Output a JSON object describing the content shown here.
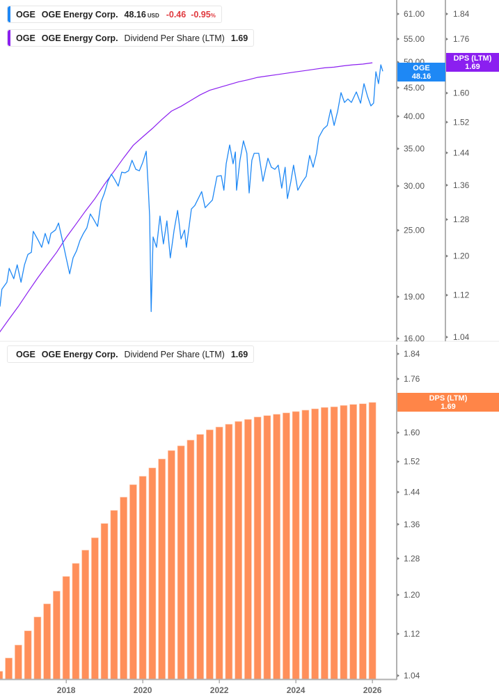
{
  "colors": {
    "price": "#1e88f5",
    "dps_line": "#8b1ff0",
    "dps_bar": "#ff8f5a",
    "negative": "#e0393e",
    "axis": "#b0b0b0",
    "tick_text": "#555555"
  },
  "legends": {
    "price": {
      "ticker": "OGE",
      "name": "OGE Energy Corp.",
      "value": "48.16",
      "currency": "USD",
      "change": "-0.46",
      "change_pct": "-0.95",
      "pct_sign": "%"
    },
    "dps_top": {
      "ticker": "OGE",
      "name": "OGE Energy Corp.",
      "metric": "Dividend Per Share (LTM)",
      "value": "1.69"
    },
    "dps_bottom": {
      "ticker": "OGE",
      "name": "OGE Energy Corp.",
      "metric": "Dividend Per Share (LTM)",
      "value": "1.69"
    }
  },
  "badges": {
    "price": {
      "label": "OGE",
      "value": "48.16"
    },
    "dps_top": {
      "label": "DPS (LTM)",
      "value": "1.69"
    },
    "dps_bottom": {
      "label": "DPS (LTM)",
      "value": "1.69"
    }
  },
  "chart_data": [
    {
      "type": "line",
      "panel": "top",
      "yscale": "log",
      "xlim": [
        2016.27,
        2026.58
      ],
      "price_axis": {
        "ylim": [
          16,
          61
        ],
        "ticks": [
          "61.00",
          "55.00",
          "50.00",
          "45.00",
          "40.00",
          "35.00",
          "30.00",
          "25.00",
          "19.00",
          "16.00"
        ]
      },
      "dps_axis": {
        "ylim": [
          1.04,
          1.84
        ],
        "ticks": [
          "1.84",
          "1.76",
          "1.68",
          "1.60",
          "1.52",
          "1.44",
          "1.36",
          "1.28",
          "1.20",
          "1.12",
          "1.04"
        ]
      },
      "series": [
        {
          "name": "OGE",
          "axis": "price",
          "points": [
            [
              2016.27,
              18.25
            ],
            [
              2016.32,
              19.61
            ],
            [
              2016.45,
              20.18
            ],
            [
              2016.51,
              21.37
            ],
            [
              2016.63,
              20.47
            ],
            [
              2016.72,
              21.68
            ],
            [
              2016.82,
              20.18
            ],
            [
              2016.91,
              21.68
            ],
            [
              2017.0,
              22.63
            ],
            [
              2017.09,
              22.83
            ],
            [
              2017.14,
              24.89
            ],
            [
              2017.27,
              23.97
            ],
            [
              2017.36,
              23.3
            ],
            [
              2017.45,
              24.68
            ],
            [
              2017.54,
              23.63
            ],
            [
              2017.6,
              24.68
            ],
            [
              2017.72,
              25.03
            ],
            [
              2017.8,
              25.76
            ],
            [
              2017.91,
              23.83
            ],
            [
              2018.0,
              22.31
            ],
            [
              2018.09,
              20.89
            ],
            [
              2018.18,
              22.31
            ],
            [
              2018.27,
              22.97
            ],
            [
              2018.36,
              23.97
            ],
            [
              2018.45,
              24.68
            ],
            [
              2018.54,
              25.25
            ],
            [
              2018.63,
              26.74
            ],
            [
              2018.72,
              26.13
            ],
            [
              2018.82,
              25.4
            ],
            [
              2018.91,
              28.08
            ],
            [
              2019.0,
              29.15
            ],
            [
              2019.09,
              30.6
            ],
            [
              2019.18,
              31.5
            ],
            [
              2019.27,
              30.78
            ],
            [
              2019.36,
              29.99
            ],
            [
              2019.45,
              31.77
            ],
            [
              2019.54,
              31.68
            ],
            [
              2019.63,
              31.95
            ],
            [
              2019.72,
              33.36
            ],
            [
              2019.82,
              32.14
            ],
            [
              2019.91,
              31.95
            ],
            [
              2020.0,
              33.07
            ],
            [
              2020.09,
              34.63
            ],
            [
              2020.14,
              30.17
            ],
            [
              2020.18,
              26.51
            ],
            [
              2020.22,
              17.88
            ],
            [
              2020.27,
              24.32
            ],
            [
              2020.36,
              23.3
            ],
            [
              2020.45,
              26.51
            ],
            [
              2020.54,
              23.63
            ],
            [
              2020.63,
              25.99
            ],
            [
              2020.72,
              22.31
            ],
            [
              2020.82,
              25.03
            ],
            [
              2020.91,
              27.13
            ],
            [
              2021.0,
              24.11
            ],
            [
              2021.09,
              25.03
            ],
            [
              2021.14,
              23.3
            ],
            [
              2021.27,
              27.29
            ],
            [
              2021.36,
              27.68
            ],
            [
              2021.54,
              29.32
            ],
            [
              2021.63,
              27.44
            ],
            [
              2021.82,
              28.32
            ],
            [
              2021.94,
              31.23
            ],
            [
              2022.05,
              31.32
            ],
            [
              2022.12,
              29.49
            ],
            [
              2022.18,
              32.89
            ],
            [
              2022.27,
              35.54
            ],
            [
              2022.36,
              32.89
            ],
            [
              2022.42,
              34.53
            ],
            [
              2022.45,
              29.49
            ],
            [
              2022.54,
              33.36
            ],
            [
              2022.63,
              36.15
            ],
            [
              2022.72,
              34.34
            ],
            [
              2022.78,
              29.15
            ],
            [
              2022.85,
              33.36
            ],
            [
              2022.91,
              34.34
            ],
            [
              2023.03,
              34.34
            ],
            [
              2023.14,
              30.6
            ],
            [
              2023.27,
              33.65
            ],
            [
              2023.36,
              32.42
            ],
            [
              2023.45,
              32.14
            ],
            [
              2023.54,
              32.7
            ],
            [
              2023.63,
              29.74
            ],
            [
              2023.72,
              32.42
            ],
            [
              2023.78,
              28.49
            ],
            [
              2023.87,
              30.6
            ],
            [
              2023.94,
              32.7
            ],
            [
              2024.05,
              29.49
            ],
            [
              2024.18,
              30.6
            ],
            [
              2024.27,
              31.23
            ],
            [
              2024.36,
              34.04
            ],
            [
              2024.45,
              32.42
            ],
            [
              2024.54,
              34.34
            ],
            [
              2024.6,
              36.68
            ],
            [
              2024.72,
              37.97
            ],
            [
              2024.82,
              38.52
            ],
            [
              2024.91,
              41.15
            ],
            [
              2025.0,
              38.52
            ],
            [
              2025.09,
              40.8
            ],
            [
              2025.18,
              44.09
            ],
            [
              2025.27,
              42.35
            ],
            [
              2025.36,
              42.96
            ],
            [
              2025.45,
              42.35
            ],
            [
              2025.58,
              44.22
            ],
            [
              2025.69,
              42.23
            ],
            [
              2025.78,
              45.76
            ],
            [
              2025.87,
              43.46
            ],
            [
              2025.96,
              41.75
            ],
            [
              2026.03,
              42.23
            ],
            [
              2026.09,
              48.06
            ],
            [
              2026.16,
              45.76
            ],
            [
              2026.22,
              49.46
            ],
            [
              2026.27,
              48.16
            ]
          ]
        },
        {
          "name": "DPS (LTM)",
          "axis": "dps",
          "source": "dividend_per_share"
        }
      ]
    },
    {
      "type": "bar",
      "panel": "bottom",
      "yscale": "log",
      "ylim": [
        1.04,
        1.84
      ],
      "xlim": [
        2016.27,
        2026.58
      ],
      "yticks": [
        "1.84",
        "1.76",
        "1.68",
        "1.60",
        "1.52",
        "1.44",
        "1.36",
        "1.28",
        "1.20",
        "1.12",
        "1.04"
      ],
      "xticks": [
        "2018",
        "2020",
        "2022",
        "2024",
        "2026"
      ],
      "categories": [
        "Q1 2016",
        "Q2 2016",
        "Q3 2016",
        "Q4 2016",
        "Q1 2017",
        "Q2 2017",
        "Q3 2017",
        "Q4 2017",
        "Q1 2018",
        "Q2 2018",
        "Q3 2018",
        "Q4 2018",
        "Q1 2019",
        "Q2 2019",
        "Q3 2019",
        "Q4 2019",
        "Q1 2020",
        "Q2 2020",
        "Q3 2020",
        "Q4 2020",
        "Q1 2021",
        "Q2 2021",
        "Q3 2021",
        "Q4 2021",
        "Q1 2022",
        "Q2 2022",
        "Q3 2022",
        "Q4 2022",
        "Q1 2023",
        "Q2 2023",
        "Q3 2023",
        "Q4 2023",
        "Q1 2024",
        "Q2 2024",
        "Q3 2024",
        "Q4 2024",
        "Q1 2025",
        "Q2 2025",
        "Q3 2025",
        "Q4 2025"
      ],
      "x": [
        2016.25,
        2016.5,
        2016.75,
        2017.0,
        2017.25,
        2017.5,
        2017.75,
        2018.0,
        2018.25,
        2018.5,
        2018.75,
        2019.0,
        2019.25,
        2019.5,
        2019.75,
        2020.0,
        2020.25,
        2020.5,
        2020.75,
        2021.0,
        2021.25,
        2021.5,
        2021.75,
        2022.0,
        2022.25,
        2022.5,
        2022.75,
        2023.0,
        2023.25,
        2023.5,
        2023.75,
        2024.0,
        2024.25,
        2024.5,
        2024.75,
        2025.0,
        2025.25,
        2025.5,
        2025.75,
        2026.0
      ],
      "series": [
        {
          "name": "Dividend Per Share (LTM)",
          "values": [
            1.048,
            1.073,
            1.098,
            1.126,
            1.154,
            1.181,
            1.208,
            1.24,
            1.269,
            1.299,
            1.328,
            1.362,
            1.394,
            1.427,
            1.459,
            1.481,
            1.503,
            1.527,
            1.55,
            1.563,
            1.579,
            1.595,
            1.608,
            1.616,
            1.624,
            1.632,
            1.638,
            1.645,
            1.649,
            1.653,
            1.657,
            1.661,
            1.665,
            1.669,
            1.673,
            1.675,
            1.679,
            1.682,
            1.684,
            1.688
          ]
        }
      ]
    }
  ]
}
